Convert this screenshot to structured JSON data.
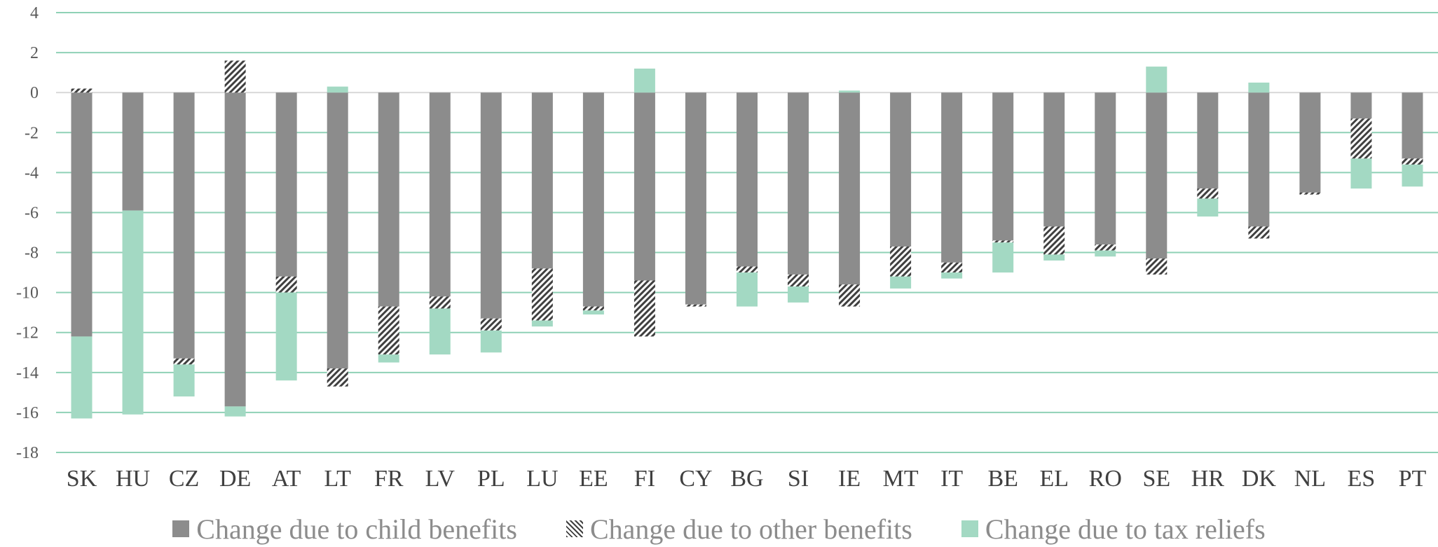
{
  "chart_data": {
    "type": "bar",
    "stacked": true,
    "ylim": [
      -18,
      4
    ],
    "yticks": [
      4,
      2,
      0,
      -2,
      -4,
      -6,
      -8,
      -10,
      -12,
      -14,
      -16,
      -18
    ],
    "grid": true,
    "legend_position": "bottom",
    "categories": [
      "SK",
      "HU",
      "CZ",
      "DE",
      "AT",
      "LT",
      "FR",
      "LV",
      "PL",
      "LU",
      "EE",
      "FI",
      "CY",
      "BG",
      "SI",
      "IE",
      "MT",
      "IT",
      "BE",
      "EL",
      "RO",
      "SE",
      "HR",
      "DK",
      "NL",
      "ES",
      "PT"
    ],
    "series": [
      {
        "name": "Change due to child benefits",
        "color": "#8c8c8c",
        "pattern": "solid",
        "values": [
          -12.2,
          -5.9,
          -13.3,
          -15.7,
          -9.2,
          -13.8,
          -10.7,
          -10.2,
          -11.3,
          -8.8,
          -10.7,
          -9.4,
          -10.6,
          -8.7,
          -9.1,
          -9.6,
          -7.7,
          -8.5,
          -7.4,
          -6.7,
          -7.6,
          -8.3,
          -4.8,
          -6.7,
          -5.0,
          -1.3,
          -3.3
        ]
      },
      {
        "name": "Change due to other benefits",
        "color": "#404040",
        "pattern": "hatch",
        "values": [
          0.2,
          0,
          -0.3,
          1.6,
          -0.8,
          -0.9,
          -2.4,
          -0.6,
          -0.6,
          -2.6,
          -0.2,
          -2.8,
          -0.1,
          -0.3,
          -0.6,
          -1.1,
          -1.5,
          -0.5,
          -0.1,
          -1.4,
          -0.3,
          -0.8,
          -0.5,
          -0.6,
          -0.1,
          -2.0,
          -0.3
        ]
      },
      {
        "name": "Change due to tax reliefs",
        "color": "#a3d9c3",
        "pattern": "solid",
        "values": [
          -4.1,
          -10.2,
          -1.6,
          -0.5,
          -4.4,
          0.3,
          -0.4,
          -2.3,
          -1.1,
          -0.3,
          -0.2,
          1.2,
          0,
          -1.7,
          -0.8,
          0.1,
          -0.6,
          -0.3,
          -1.5,
          -0.3,
          -0.3,
          1.3,
          -0.9,
          0.5,
          0,
          -1.5,
          -1.1
        ]
      }
    ]
  }
}
